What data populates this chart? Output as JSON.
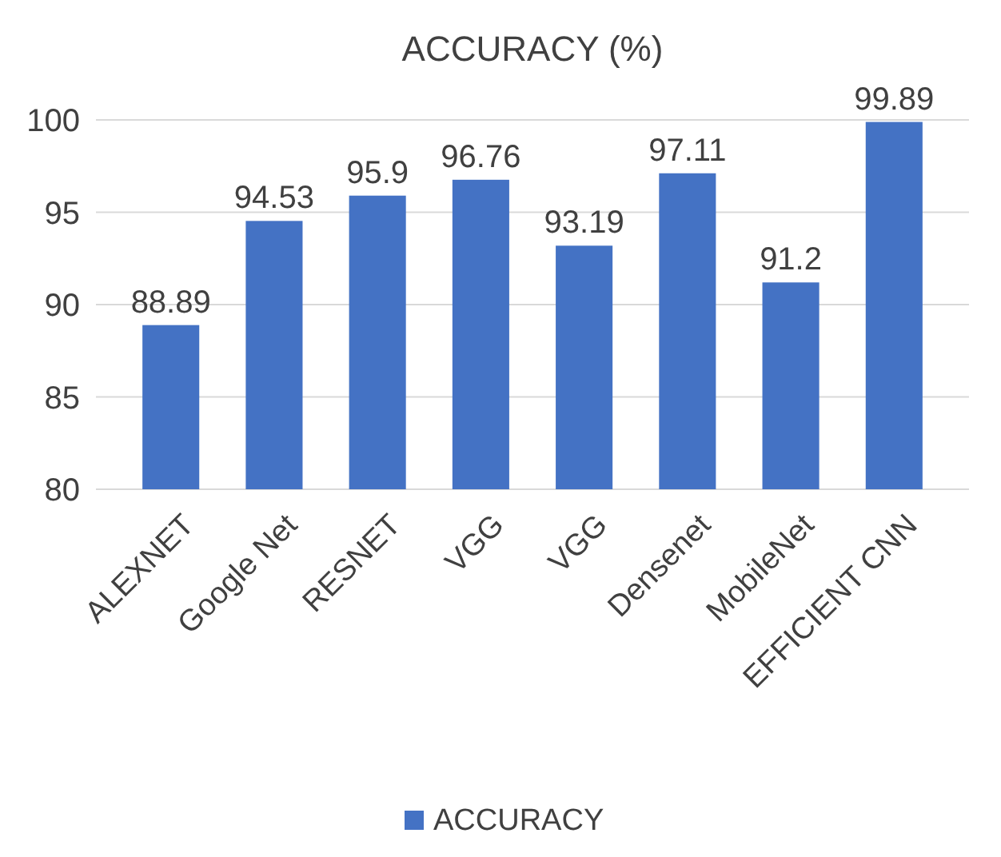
{
  "chart_data": {
    "type": "bar",
    "title": "ACCURACY (%)",
    "categories": [
      "ALEXNET",
      "Google Net",
      "RESNET",
      "VGG",
      "VGG",
      "Densenet",
      "MobileNet",
      "EFFICIENT CNN"
    ],
    "series": [
      {
        "name": "ACCURACY",
        "color": "#4472c4",
        "values": [
          88.89,
          94.53,
          95.9,
          96.76,
          93.19,
          97.11,
          91.2,
          99.89
        ]
      }
    ],
    "ylim": [
      80,
      100
    ],
    "yticks": [
      80,
      85,
      90,
      95,
      100
    ],
    "grid": "y",
    "legend": "bottom",
    "data_labels": true
  }
}
